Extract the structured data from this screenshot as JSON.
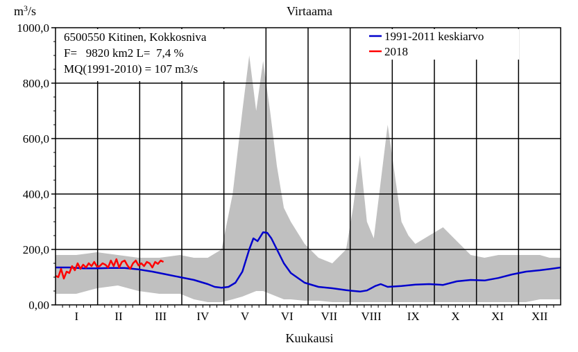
{
  "chart_data": {
    "type": "line",
    "title": "Virtaama",
    "ylabel_base": "m",
    "ylabel_exp": "3",
    "ylabel_suffix": "/s",
    "xlabel": "Kuukausi",
    "ylim": [
      0,
      1000
    ],
    "yticks": [
      "0,00",
      "200,0",
      "400,0",
      "600,0",
      "800,0",
      "1000,0"
    ],
    "categories": [
      "I",
      "II",
      "III",
      "IV",
      "V",
      "VI",
      "VII",
      "VIII",
      "IX",
      "X",
      "XI",
      "XII"
    ],
    "info_lines": [
      "6500550 Kitinen, Kokkosniva",
      "F=   9820 km2 L=  7,4 %",
      "MQ(1991-2010) = 107 m3/s"
    ],
    "grid": true,
    "legend_position": "top-right",
    "envelope_color": "#c0c0c0",
    "envelope": {
      "name": "",
      "x": [
        0,
        15,
        30,
        45,
        60,
        75,
        90,
        100,
        110,
        120,
        128,
        135,
        140,
        145,
        150,
        155,
        160,
        165,
        170,
        180,
        190,
        200,
        210,
        215,
        220,
        225,
        230,
        240,
        250,
        255,
        260,
        270,
        280,
        290,
        300,
        310,
        320,
        330,
        340,
        350,
        357,
        365
      ],
      "max": [
        180,
        180,
        190,
        180,
        170,
        170,
        180,
        170,
        170,
        200,
        400,
        700,
        900,
        700,
        880,
        700,
        500,
        350,
        300,
        220,
        170,
        150,
        200,
        350,
        540,
        300,
        240,
        650,
        300,
        250,
        220,
        250,
        280,
        230,
        180,
        170,
        180,
        180,
        180,
        180,
        170,
        170
      ],
      "min": [
        40,
        40,
        60,
        70,
        50,
        40,
        40,
        20,
        10,
        10,
        20,
        30,
        40,
        50,
        50,
        40,
        30,
        20,
        20,
        15,
        15,
        10,
        10,
        10,
        10,
        10,
        10,
        10,
        10,
        10,
        10,
        10,
        10,
        10,
        10,
        10,
        10,
        10,
        10,
        20,
        20,
        20
      ]
    },
    "series": [
      {
        "name": "1991-2011 keskiarvo",
        "color": "#0000cc",
        "x": [
          0,
          10,
          20,
          30,
          40,
          50,
          60,
          70,
          80,
          90,
          100,
          110,
          115,
          120,
          125,
          130,
          135,
          140,
          143,
          146,
          150,
          153,
          156,
          160,
          165,
          170,
          180,
          190,
          200,
          210,
          220,
          225,
          228,
          231,
          235,
          240,
          250,
          260,
          270,
          280,
          290,
          300,
          310,
          320,
          330,
          340,
          350,
          358,
          365
        ],
        "y": [
          135,
          135,
          132,
          132,
          133,
          133,
          128,
          120,
          110,
          100,
          90,
          75,
          65,
          62,
          65,
          80,
          120,
          200,
          240,
          230,
          262,
          260,
          240,
          200,
          150,
          115,
          80,
          65,
          60,
          53,
          48,
          52,
          60,
          68,
          75,
          65,
          68,
          73,
          75,
          72,
          85,
          90,
          88,
          97,
          110,
          120,
          125,
          130,
          135
        ]
      },
      {
        "name": "2018",
        "color": "#ff0000",
        "x": [
          0,
          2,
          4,
          6,
          8,
          10,
          12,
          14,
          16,
          18,
          20,
          22,
          24,
          26,
          28,
          30,
          32,
          34,
          36,
          38,
          40,
          42,
          44,
          46,
          48,
          50,
          52,
          54,
          56,
          58,
          60,
          62,
          64,
          66,
          68,
          70,
          72,
          74,
          76,
          78
        ],
        "y": [
          105,
          100,
          130,
          95,
          120,
          115,
          140,
          125,
          150,
          130,
          145,
          135,
          150,
          140,
          155,
          138,
          140,
          150,
          145,
          135,
          160,
          140,
          165,
          135,
          155,
          160,
          142,
          130,
          150,
          160,
          142,
          150,
          140,
          155,
          150,
          135,
          155,
          148,
          160,
          155
        ]
      }
    ]
  }
}
